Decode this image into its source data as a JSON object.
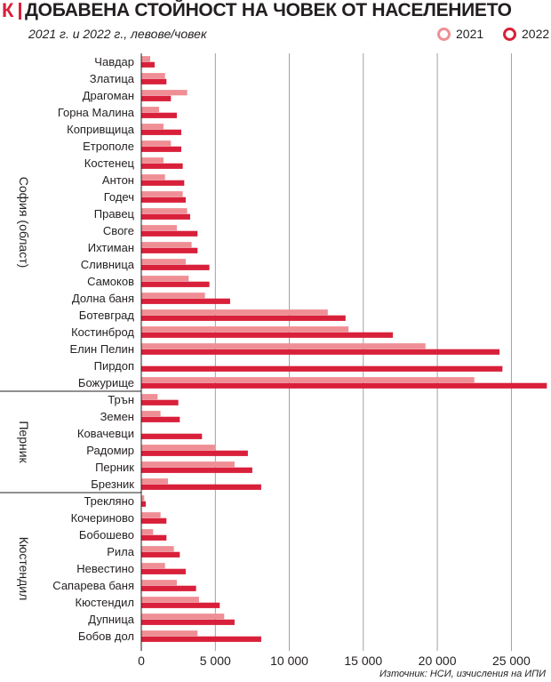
{
  "header": {
    "logo": "К",
    "title": "ДОБАВЕНА СТОЙНОСТ НА ЧОВЕК ОТ НАСЕЛЕНИЕТО",
    "subtitle": "2021 г. и 2022 г., левове/човек"
  },
  "legend": [
    {
      "label": "2021",
      "color": "#ef8f95"
    },
    {
      "label": "2022",
      "color": "#d9203a"
    }
  ],
  "source": "Източник: НСИ, изчисления на ИПИ",
  "chart_data": {
    "type": "bar",
    "orientation": "horizontal",
    "title": "ДОБАВЕНА СТОЙНОСТ НА ЧОВЕК ОТ НАСЕЛЕНИЕТО",
    "subtitle": "2021 г. и 2022 г., левове/човек",
    "xlim": [
      0,
      27500
    ],
    "xticks": [
      0,
      5000,
      10000,
      15000,
      20000,
      25000
    ],
    "xtick_labels": [
      "0",
      "5 000",
      "10 000",
      "15 000",
      "20 000",
      "25 000"
    ],
    "grid": true,
    "legend_position": "top-right",
    "series_names": [
      "2021",
      "2022"
    ],
    "series_colors": [
      "#ef8f95",
      "#d9203a"
    ],
    "groups": [
      {
        "name": "София (област)",
        "items": [
          {
            "label": "Чавдар",
            "v2021": 600,
            "v2022": 900
          },
          {
            "label": "Златица",
            "v2021": 1600,
            "v2022": 1700
          },
          {
            "label": "Драгоман",
            "v2021": 3100,
            "v2022": 2000
          },
          {
            "label": "Горна Малина",
            "v2021": 1200,
            "v2022": 2400
          },
          {
            "label": "Копривщица",
            "v2021": 1500,
            "v2022": 2700
          },
          {
            "label": "Етрополе",
            "v2021": 2000,
            "v2022": 2700
          },
          {
            "label": "Костенец",
            "v2021": 1500,
            "v2022": 2800
          },
          {
            "label": "Антон",
            "v2021": 1600,
            "v2022": 2900
          },
          {
            "label": "Годеч",
            "v2021": 2800,
            "v2022": 3000
          },
          {
            "label": "Правец",
            "v2021": 3100,
            "v2022": 3300
          },
          {
            "label": "Своге",
            "v2021": 2400,
            "v2022": 3800
          },
          {
            "label": "Ихтиман",
            "v2021": 3400,
            "v2022": 3800
          },
          {
            "label": "Сливница",
            "v2021": 3000,
            "v2022": 4600
          },
          {
            "label": "Самоков",
            "v2021": 3200,
            "v2022": 4600
          },
          {
            "label": "Долна баня",
            "v2021": 4300,
            "v2022": 6000
          },
          {
            "label": "Ботевград",
            "v2021": 12600,
            "v2022": 13800
          },
          {
            "label": "Костинброд",
            "v2021": 14000,
            "v2022": 17000
          },
          {
            "label": "Елин Пелин",
            "v2021": 19200,
            "v2022": 24200
          },
          {
            "label": "Пирдоп",
            "v2021": 0,
            "v2022": 24400
          },
          {
            "label": "Божурище",
            "v2021": 22500,
            "v2022": 27400
          }
        ]
      },
      {
        "name": "Перник",
        "items": [
          {
            "label": "Трън",
            "v2021": 1100,
            "v2022": 2500
          },
          {
            "label": "Земен",
            "v2021": 1300,
            "v2022": 2600
          },
          {
            "label": "Ковачевци",
            "v2021": 0,
            "v2022": 4100
          },
          {
            "label": "Радомир",
            "v2021": 5000,
            "v2022": 7200
          },
          {
            "label": "Перник",
            "v2021": 6300,
            "v2022": 7500
          },
          {
            "label": "Брезник",
            "v2021": 1800,
            "v2022": 8100
          }
        ]
      },
      {
        "name": "Кюстендил",
        "items": [
          {
            "label": "Трекляно",
            "v2021": 200,
            "v2022": 300
          },
          {
            "label": "Кочериново",
            "v2021": 1300,
            "v2022": 1700
          },
          {
            "label": "Бобошево",
            "v2021": 800,
            "v2022": 1700
          },
          {
            "label": "Рила",
            "v2021": 2200,
            "v2022": 2600
          },
          {
            "label": "Невестино",
            "v2021": 1600,
            "v2022": 3000
          },
          {
            "label": "Сапарева баня",
            "v2021": 2400,
            "v2022": 3700
          },
          {
            "label": "Кюстендил",
            "v2021": 3900,
            "v2022": 5300
          },
          {
            "label": "Дупница",
            "v2021": 5600,
            "v2022": 6300
          },
          {
            "label": "Бобов дол",
            "v2021": 3800,
            "v2022": 8100
          }
        ]
      }
    ]
  }
}
